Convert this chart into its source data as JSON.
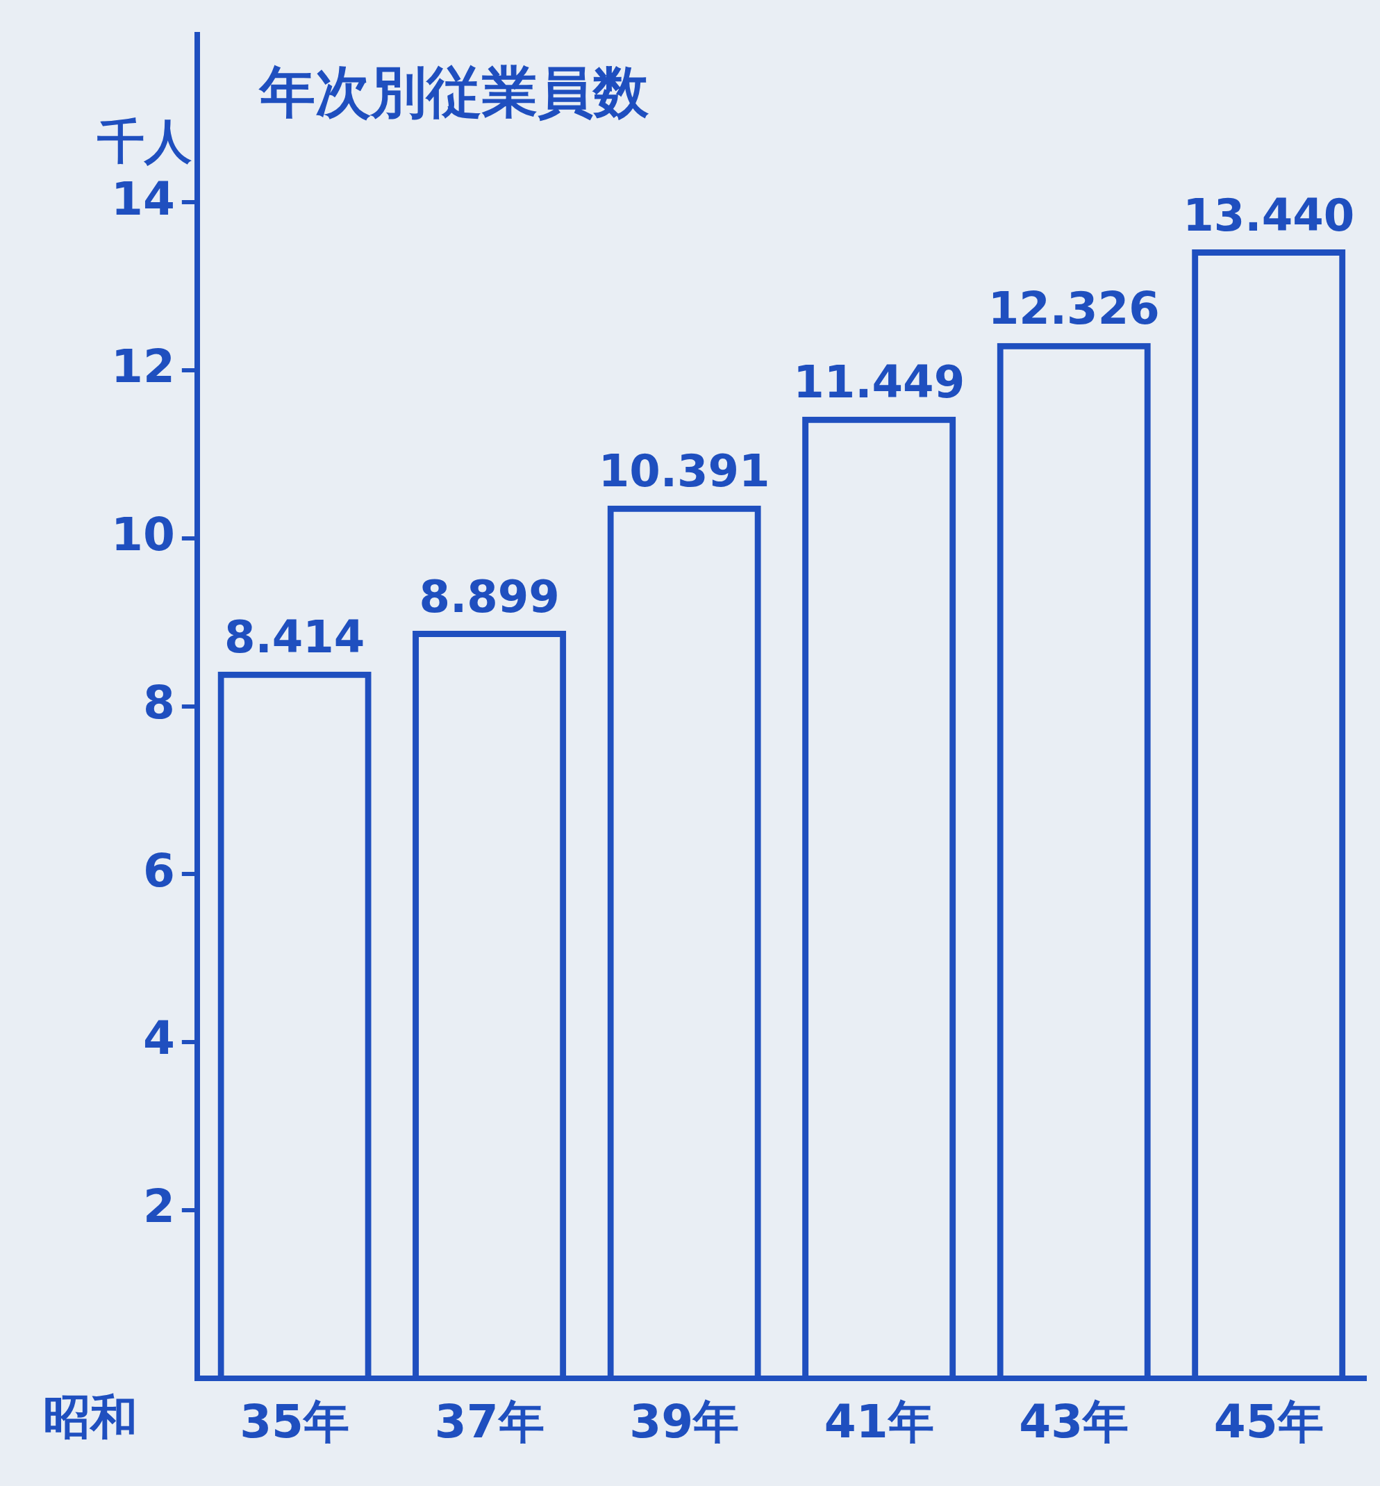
{
  "chart_data": {
    "type": "bar",
    "title": "年次別従業員数",
    "ylabel": "千人",
    "xlabel": "昭和",
    "categories": [
      "35年",
      "37年",
      "39年",
      "41年",
      "43年",
      "45年"
    ],
    "values": [
      8.414,
      8.899,
      10.391,
      11.449,
      12.326,
      13.44
    ],
    "value_labels": [
      "8.414",
      "8.899",
      "10.391",
      "11.449",
      "12.326",
      "13.440"
    ],
    "color": "#1f4fbf",
    "ylim": [
      0,
      16
    ],
    "yticks": [
      2,
      4,
      6,
      8,
      10,
      12,
      14
    ]
  }
}
